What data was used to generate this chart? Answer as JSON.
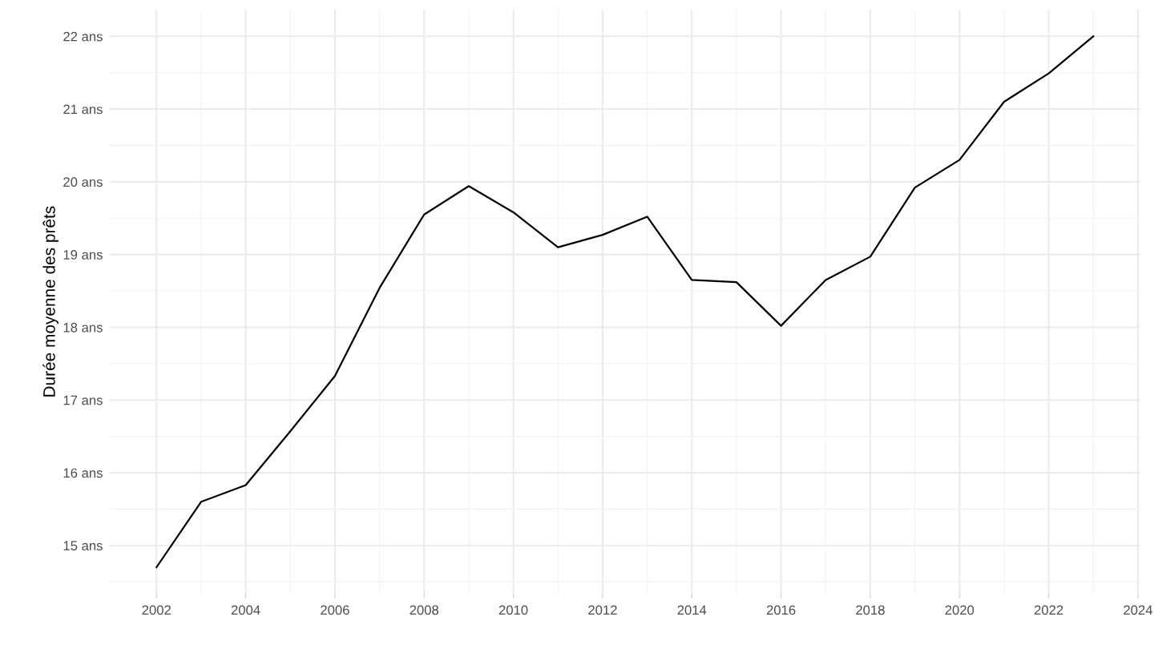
{
  "chart_data": {
    "type": "line",
    "ylabel": "Durée moyenne des prêts",
    "x": [
      2002,
      2003,
      2004,
      2005,
      2006,
      2007,
      2008,
      2009,
      2010,
      2011,
      2012,
      2013,
      2014,
      2015,
      2016,
      2017,
      2018,
      2019,
      2020,
      2021,
      2022,
      2023
    ],
    "series": [
      {
        "color": "#000000",
        "values": [
          14.7,
          15.6,
          15.83,
          16.57,
          17.33,
          18.54,
          19.55,
          19.94,
          19.58,
          19.1,
          19.27,
          19.52,
          18.65,
          18.62,
          18.02,
          18.65,
          18.97,
          19.92,
          20.3,
          21.1,
          21.49,
          22.0
        ]
      }
    ],
    "xlim": [
      2000.95,
      2024.05
    ],
    "xticks": [
      2002,
      2004,
      2006,
      2008,
      2010,
      2012,
      2014,
      2016,
      2018,
      2020,
      2022,
      2024
    ],
    "ylim": [
      14.335,
      22.365
    ],
    "yticks": [
      {
        "value": 15,
        "label": "15 ans"
      },
      {
        "value": 16,
        "label": "16 ans"
      },
      {
        "value": 17,
        "label": "17 ans"
      },
      {
        "value": 18,
        "label": "18 ans"
      },
      {
        "value": 19,
        "label": "19 ans"
      },
      {
        "value": 20,
        "label": "20 ans"
      },
      {
        "value": 21,
        "label": "21 ans"
      },
      {
        "value": 22,
        "label": "22 ans"
      }
    ],
    "grid": true,
    "legend": false,
    "marker": "none",
    "line_style": "solid"
  }
}
